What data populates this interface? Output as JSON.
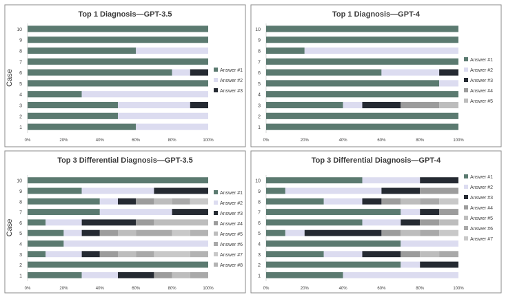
{
  "colors": {
    "answer_1": "#5b7a70",
    "answer_2": "#dcdcf0",
    "answer_3": "#252a32",
    "answer_4": "#9c9c9c",
    "answer_5": "#bdbdbd",
    "answer_6": "#a9a9a9",
    "answer_7": "#c8c8c8",
    "answer_8": "#b3b3b3",
    "frame": "#8a8a8a",
    "text": "#404040"
  },
  "chart_data": [
    {
      "type": "bar",
      "orientation": "horizontal",
      "stacked": "percent",
      "title": "Top 1 Diagnosis—GPT-3.5",
      "ylabel": "Case",
      "xlabel": "",
      "categories": [
        "1",
        "2",
        "3",
        "4",
        "5",
        "6",
        "7",
        "8",
        "9",
        "10"
      ],
      "x_ticks": [
        "0%",
        "20%",
        "40%",
        "60%",
        "80%",
        "100%"
      ],
      "xlim": [
        0,
        100
      ],
      "legend_position": "right",
      "series": [
        {
          "name": "Answer #1",
          "values": [
            60,
            50,
            50,
            30,
            100,
            80,
            100,
            60,
            100,
            100
          ]
        },
        {
          "name": "Answer #2",
          "values": [
            40,
            50,
            40,
            70,
            0,
            10,
            0,
            40,
            0,
            0
          ]
        },
        {
          "name": "Answer #3",
          "values": [
            0,
            0,
            10,
            0,
            0,
            10,
            0,
            0,
            0,
            0
          ]
        }
      ]
    },
    {
      "type": "bar",
      "orientation": "horizontal",
      "stacked": "percent",
      "title": "Top 1 Diagnosis—GPT-4",
      "ylabel": "",
      "xlabel": "",
      "categories": [
        "1",
        "2",
        "3",
        "4",
        "5",
        "6",
        "7",
        "8",
        "9",
        "10"
      ],
      "x_ticks": [
        "0%",
        "20%",
        "40%",
        "60%",
        "80%",
        "100%"
      ],
      "xlim": [
        0,
        100
      ],
      "legend_position": "right",
      "series": [
        {
          "name": "Answer #1",
          "values": [
            100,
            100,
            40,
            100,
            90,
            60,
            100,
            20,
            100,
            100
          ]
        },
        {
          "name": "Answer #2",
          "values": [
            0,
            0,
            10,
            0,
            10,
            30,
            0,
            80,
            0,
            0
          ]
        },
        {
          "name": "Answer #3",
          "values": [
            0,
            0,
            20,
            0,
            0,
            10,
            0,
            0,
            0,
            0
          ]
        },
        {
          "name": "Answer #4",
          "values": [
            0,
            0,
            20,
            0,
            0,
            0,
            0,
            0,
            0,
            0
          ]
        },
        {
          "name": "Answer #5",
          "values": [
            0,
            0,
            10,
            0,
            0,
            0,
            0,
            0,
            0,
            0
          ]
        }
      ]
    },
    {
      "type": "bar",
      "orientation": "horizontal",
      "stacked": "percent",
      "title": "Top 3 Differential Diagnosis—GPT-3.5",
      "ylabel": "Case",
      "xlabel": "",
      "categories": [
        "1",
        "2",
        "3",
        "4",
        "5",
        "6",
        "7",
        "8",
        "9",
        "10"
      ],
      "x_ticks": [
        "0%",
        "20%",
        "40%",
        "60%",
        "80%",
        "100%"
      ],
      "xlim": [
        0,
        100
      ],
      "legend_position": "right",
      "series": [
        {
          "name": "Answer #1",
          "values": [
            30,
            100,
            10,
            20,
            20,
            10,
            40,
            40,
            30,
            100
          ]
        },
        {
          "name": "Answer #2",
          "values": [
            20,
            0,
            20,
            80,
            10,
            20,
            40,
            10,
            40,
            0
          ]
        },
        {
          "name": "Answer #3",
          "values": [
            20,
            0,
            10,
            0,
            10,
            30,
            20,
            10,
            30,
            0
          ]
        },
        {
          "name": "Answer #4",
          "values": [
            10,
            0,
            10,
            0,
            10,
            10,
            0,
            10,
            0,
            0
          ]
        },
        {
          "name": "Answer #5",
          "values": [
            10,
            0,
            10,
            0,
            10,
            30,
            0,
            10,
            0,
            0
          ]
        },
        {
          "name": "Answer #6",
          "values": [
            10,
            0,
            10,
            0,
            20,
            0,
            0,
            10,
            0,
            0
          ]
        },
        {
          "name": "Answer #7",
          "values": [
            0,
            0,
            20,
            0,
            10,
            0,
            0,
            10,
            0,
            0
          ]
        },
        {
          "name": "Answer #8",
          "values": [
            0,
            0,
            10,
            0,
            10,
            0,
            0,
            0,
            0,
            0
          ]
        }
      ]
    },
    {
      "type": "bar",
      "orientation": "horizontal",
      "stacked": "percent",
      "title": "Top 3 Differential Diagnosis—GPT-4",
      "ylabel": "",
      "xlabel": "",
      "categories": [
        "1",
        "2",
        "3",
        "4",
        "5",
        "6",
        "7",
        "8",
        "9",
        "10"
      ],
      "x_ticks": [
        "0%",
        "20%",
        "40%",
        "60%",
        "80%",
        "100%"
      ],
      "xlim": [
        0,
        100
      ],
      "legend_position": "right",
      "series": [
        {
          "name": "Answer #1",
          "values": [
            40,
            70,
            30,
            70,
            10,
            50,
            70,
            30,
            10,
            50
          ]
        },
        {
          "name": "Answer #2",
          "values": [
            60,
            10,
            20,
            30,
            10,
            20,
            10,
            20,
            50,
            30
          ]
        },
        {
          "name": "Answer #3",
          "values": [
            0,
            20,
            20,
            0,
            40,
            10,
            10,
            10,
            20,
            20
          ]
        },
        {
          "name": "Answer #4",
          "values": [
            0,
            0,
            10,
            0,
            10,
            10,
            10,
            10,
            20,
            0
          ]
        },
        {
          "name": "Answer #5",
          "values": [
            0,
            0,
            10,
            0,
            10,
            10,
            0,
            10,
            0,
            0
          ]
        },
        {
          "name": "Answer #6",
          "values": [
            0,
            0,
            10,
            0,
            10,
            0,
            0,
            10,
            0,
            0
          ]
        },
        {
          "name": "Answer #7",
          "values": [
            0,
            0,
            0,
            0,
            10,
            0,
            0,
            10,
            0,
            0
          ]
        }
      ]
    }
  ]
}
